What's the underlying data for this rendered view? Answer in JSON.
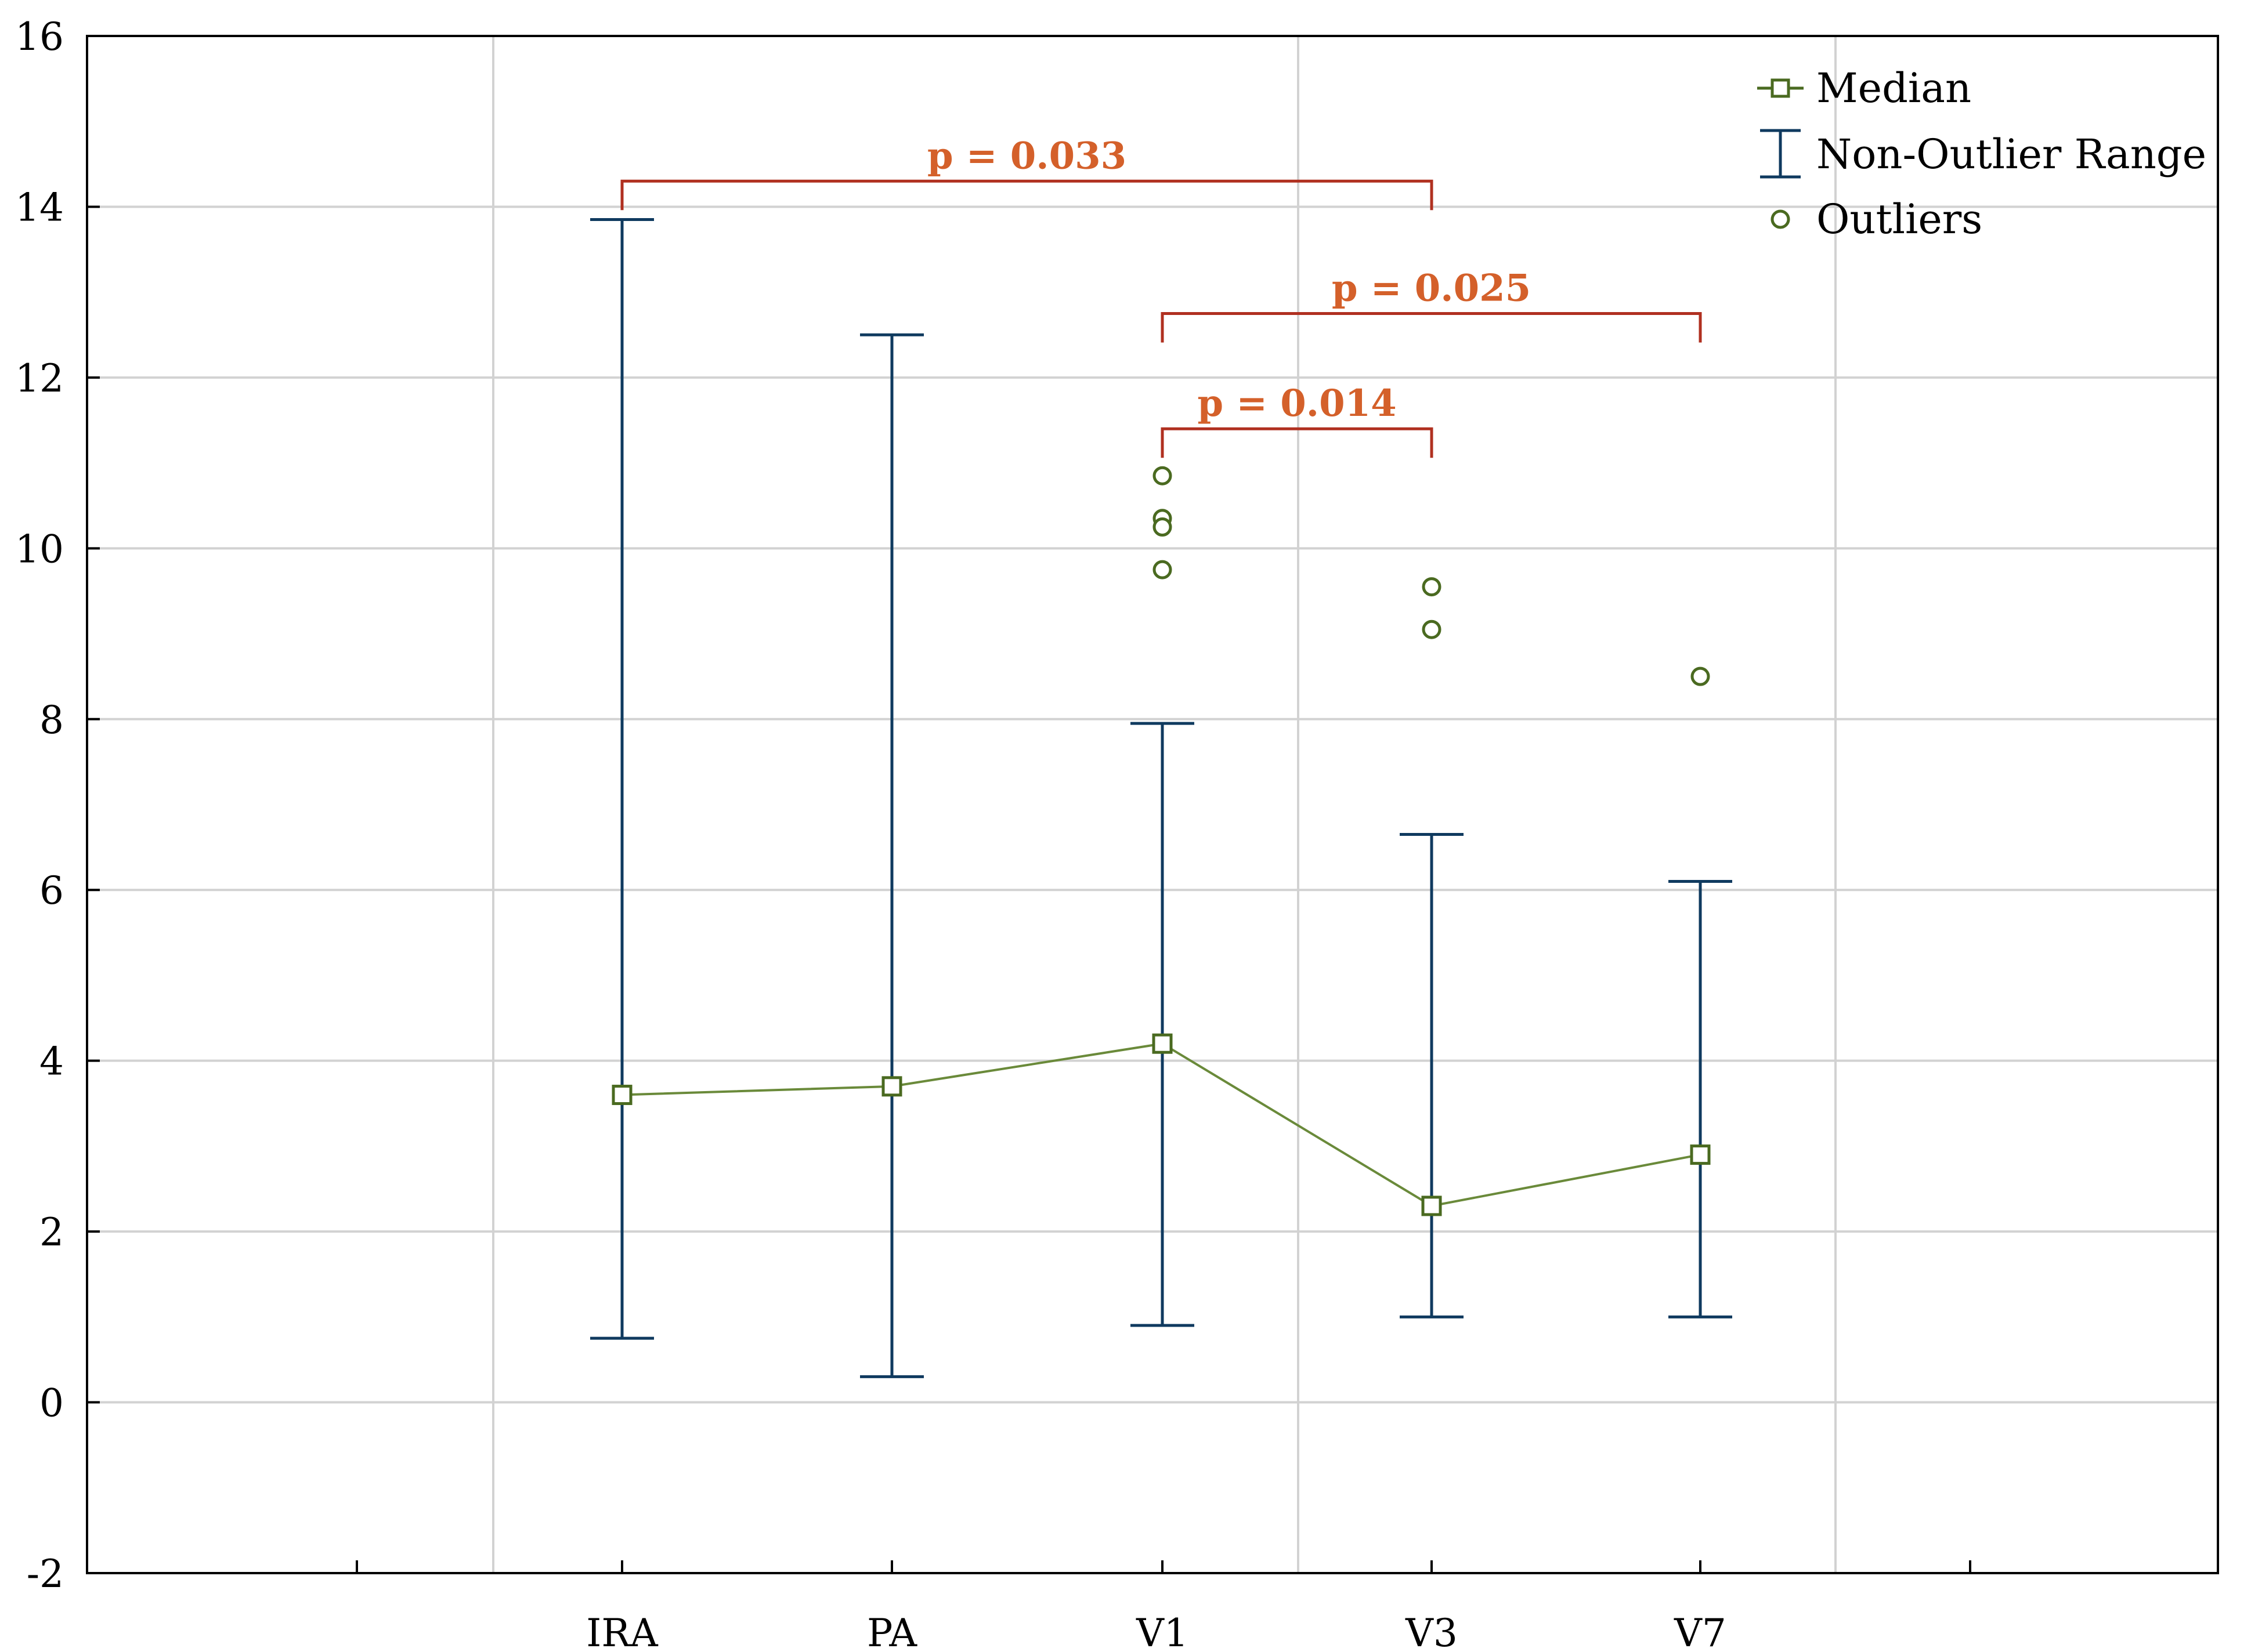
{
  "chart_data": {
    "type": "box",
    "title": "",
    "xlabel": "",
    "ylabel": "",
    "categories": [
      "IRA",
      "PA",
      "V1",
      "V3",
      "V7"
    ],
    "ylim": [
      -2,
      16
    ],
    "yticks": [
      -2,
      0,
      2,
      4,
      6,
      8,
      10,
      12,
      14,
      16
    ],
    "ytick_labels": [
      "-2",
      "0",
      "2",
      "4",
      "6",
      "8",
      "10",
      "12",
      "14",
      "16"
    ],
    "grid": true,
    "series": [
      {
        "name": "Median",
        "type": "line",
        "marker": "square",
        "color": "#4a6a20",
        "values": [
          3.6,
          3.7,
          4.2,
          2.3,
          2.9
        ]
      },
      {
        "name": "Non-Outlier Range",
        "type": "range",
        "color": "#0f3a5f",
        "low": [
          0.75,
          0.3,
          0.9,
          1.0,
          1.0
        ],
        "high": [
          13.85,
          12.5,
          7.95,
          6.65,
          6.1
        ]
      },
      {
        "name": "Outliers",
        "type": "scatter",
        "marker": "circle",
        "color": "#4a6a20",
        "points": [
          {
            "category": "V1",
            "value": 10.85
          },
          {
            "category": "V1",
            "value": 10.35
          },
          {
            "category": "V1",
            "value": 10.25
          },
          {
            "category": "V1",
            "value": 9.75
          },
          {
            "category": "V3",
            "value": 9.55
          },
          {
            "category": "V3",
            "value": 9.05
          },
          {
            "category": "V7",
            "value": 8.5
          }
        ]
      }
    ],
    "legend": {
      "position": "top-right",
      "entries": [
        "Median",
        "Non-Outlier Range",
        "Outliers"
      ]
    },
    "annotations": [
      {
        "from": "IRA",
        "to": "V3",
        "label": "p = 0.033",
        "level": 14.3
      },
      {
        "from": "V1",
        "to": "V7",
        "label": "p = 0.025",
        "level": 12.75
      },
      {
        "from": "V1",
        "to": "V3",
        "label": "p = 0.014",
        "level": 11.4
      }
    ],
    "annotation_color": "#b03020",
    "annotation_text_color": "#d4602a"
  }
}
